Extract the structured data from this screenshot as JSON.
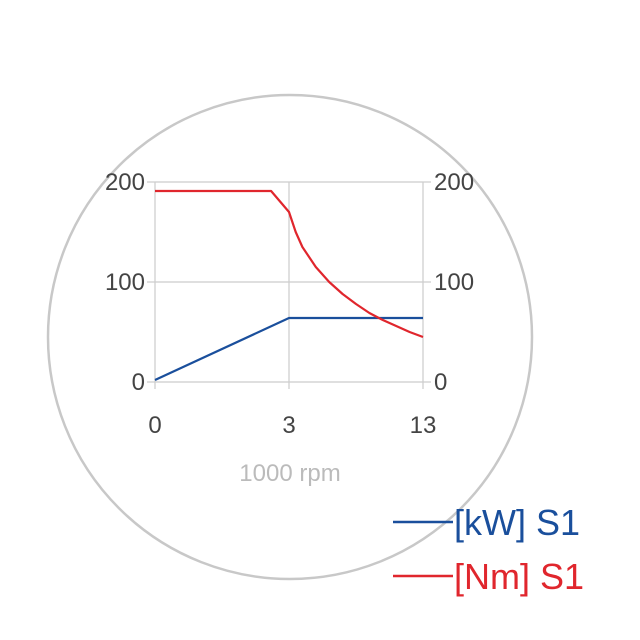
{
  "chart_data": {
    "type": "line",
    "title": "",
    "xlabel": "1000 rpm",
    "ylabel": "",
    "x_ticks": [
      "0",
      "3",
      "13"
    ],
    "y_ticks_left": [
      "0",
      "100",
      "200"
    ],
    "y_ticks_right": [
      "0",
      "100",
      "200"
    ],
    "ylim": [
      0,
      200
    ],
    "grid": true,
    "legend": "bottom-right",
    "series": [
      {
        "name": "[kW] S1",
        "color": "#1a4f9c",
        "points": [
          [
            0,
            2
          ],
          [
            3,
            64
          ],
          [
            13,
            64
          ]
        ]
      },
      {
        "name": "[Nm] S1",
        "color": "#e0262d",
        "points": [
          [
            0,
            191
          ],
          [
            2.6,
            191
          ],
          [
            3.0,
            170
          ],
          [
            3.5,
            150
          ],
          [
            4.0,
            135
          ],
          [
            5.0,
            115
          ],
          [
            6.0,
            100
          ],
          [
            7.0,
            88
          ],
          [
            8.0,
            78
          ],
          [
            9.0,
            69
          ],
          [
            10.0,
            62
          ],
          [
            11.0,
            56
          ],
          [
            12.0,
            50
          ],
          [
            13.0,
            45
          ]
        ]
      }
    ]
  },
  "colors": {
    "grid": "#cccccc",
    "frame": "#c8c8c8",
    "tick": "#444444",
    "xlabel": "#bbbbbb"
  }
}
